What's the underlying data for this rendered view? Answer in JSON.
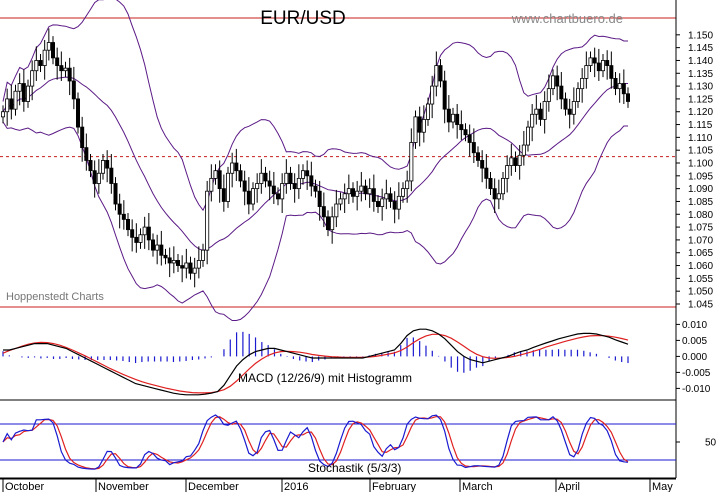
{
  "title": "EUR/USD",
  "site": "www.chartbuero.de",
  "watermark": "Hoppenstedt Charts",
  "colors": {
    "candle": "#000000",
    "bollinger": "#5b1a86",
    "redline": "#c81e1e",
    "macd_line": "#000000",
    "signal_line": "#e02020",
    "histogram": "#1a1ad0",
    "stoch_k": "#1a1ad0",
    "stoch_d": "#e02020",
    "stoch_levels": "#1a1ad0",
    "ref_dotted": "#c81e1e"
  },
  "x_labels": [
    "October",
    "November",
    "December",
    "2016",
    "February",
    "March",
    "April",
    "May"
  ],
  "chart_data": [
    {
      "type": "candlestick",
      "title": "EUR/USD",
      "ylim": [
        1.045,
        1.155
      ],
      "y_ticks": [
        "1.150",
        "1.145",
        "1.140",
        "1.135",
        "1.130",
        "1.125",
        "1.120",
        "1.115",
        "1.110",
        "1.105",
        "1.100",
        "1.095",
        "1.090",
        "1.085",
        "1.080",
        "1.075",
        "1.070",
        "1.065",
        "1.060",
        "1.055",
        "1.050",
        "1.045"
      ],
      "reference_line": 1.1025,
      "x_range": [
        0,
        144
      ],
      "close": [
        1.12,
        1.125,
        1.121,
        1.128,
        1.131,
        1.124,
        1.13,
        1.136,
        1.14,
        1.138,
        1.144,
        1.147,
        1.141,
        1.138,
        1.136,
        1.137,
        1.132,
        1.125,
        1.114,
        1.106,
        1.101,
        1.097,
        1.092,
        1.096,
        1.101,
        1.098,
        1.092,
        1.084,
        1.08,
        1.078,
        1.074,
        1.071,
        1.069,
        1.072,
        1.075,
        1.07,
        1.066,
        1.068,
        1.064,
        1.063,
        1.061,
        1.062,
        1.06,
        1.059,
        1.061,
        1.057,
        1.059,
        1.062,
        1.066,
        1.089,
        1.094,
        1.097,
        1.09,
        1.085,
        1.096,
        1.1,
        1.097,
        1.093,
        1.089,
        1.084,
        1.09,
        1.092,
        1.096,
        1.093,
        1.091,
        1.088,
        1.086,
        1.092,
        1.096,
        1.092,
        1.09,
        1.094,
        1.097,
        1.095,
        1.091,
        1.089,
        1.083,
        1.079,
        1.074,
        1.079,
        1.084,
        1.086,
        1.088,
        1.09,
        1.087,
        1.089,
        1.091,
        1.088,
        1.09,
        1.085,
        1.083,
        1.086,
        1.088,
        1.085,
        1.082,
        1.087,
        1.09,
        1.093,
        1.108,
        1.118,
        1.112,
        1.117,
        1.123,
        1.13,
        1.138,
        1.132,
        1.121,
        1.116,
        1.119,
        1.115,
        1.113,
        1.111,
        1.108,
        1.104,
        1.101,
        1.098,
        1.094,
        1.09,
        1.086,
        1.088,
        1.094,
        1.099,
        1.102,
        1.099,
        1.103,
        1.107,
        1.114,
        1.119,
        1.121,
        1.117,
        1.124,
        1.129,
        1.134,
        1.13,
        1.125,
        1.121,
        1.119,
        1.124,
        1.129,
        1.133,
        1.138,
        1.141,
        1.139,
        1.136,
        1.14,
        1.138,
        1.133,
        1.129,
        1.131,
        1.127,
        1.124
      ],
      "series": [
        {
          "name": "MACD (12/26/9) mit Histogramm",
          "role": "panel_label"
        }
      ]
    },
    {
      "type": "line",
      "title": "MACD (12/26/9) mit Histogramm",
      "ylim": [
        -0.013,
        0.012
      ],
      "y_ticks": [
        "0.010",
        "0.005",
        "0.000",
        "-0.005",
        "-0.010"
      ],
      "macd": [
        0.002,
        0.002,
        0.0025,
        0.003,
        0.0035,
        0.004,
        0.004,
        0.004,
        0.0035,
        0.003,
        0.0025,
        0.0015,
        0.0005,
        -0.0005,
        -0.0015,
        -0.0025,
        -0.0035,
        -0.0045,
        -0.0055,
        -0.0065,
        -0.0075,
        -0.0085,
        -0.009,
        -0.0095,
        -0.01,
        -0.0105,
        -0.011,
        -0.0115,
        -0.0118,
        -0.012,
        -0.012,
        -0.012,
        -0.0118,
        -0.0115,
        -0.011,
        -0.009,
        -0.006,
        -0.003,
        -0.001,
        0.0005,
        0.0015,
        0.002,
        0.0025,
        0.0025,
        0.002,
        0.0015,
        0.001,
        0.0005,
        0.0,
        -0.0005,
        -0.0005,
        -0.0005,
        -0.0005,
        -0.0005,
        -0.0005,
        -0.0005,
        -0.0005,
        -0.0005,
        0.0,
        0.0005,
        0.001,
        0.0015,
        0.002,
        0.004,
        0.0065,
        0.008,
        0.0085,
        0.0085,
        0.008,
        0.007,
        0.0055,
        0.0035,
        0.0015,
        0.0,
        -0.001,
        -0.0015,
        -0.002,
        -0.0015,
        -0.001,
        -0.0005,
        0.0,
        0.0008,
        0.0015,
        0.002,
        0.0028,
        0.0035,
        0.0042,
        0.0048,
        0.0055,
        0.006,
        0.0065,
        0.007,
        0.0072,
        0.0072,
        0.007,
        0.0065,
        0.006,
        0.0052,
        0.0045,
        0.0038
      ],
      "signal": [
        0.001,
        0.0018,
        0.0025,
        0.0032,
        0.0038,
        0.0042,
        0.0044,
        0.0043,
        0.004,
        0.0035,
        0.0028,
        0.002,
        0.0011,
        0.0002,
        -0.0008,
        -0.0018,
        -0.0028,
        -0.0038,
        -0.0047,
        -0.0056,
        -0.0064,
        -0.0072,
        -0.0079,
        -0.0085,
        -0.009,
        -0.0095,
        -0.01,
        -0.0104,
        -0.0108,
        -0.0111,
        -0.0113,
        -0.0114,
        -0.0114,
        -0.0113,
        -0.011,
        -0.0104,
        -0.0093,
        -0.0077,
        -0.0058,
        -0.0039,
        -0.0022,
        -0.0008,
        0.0003,
        0.0011,
        0.0015,
        0.0016,
        0.0015,
        0.0013,
        0.001,
        0.0006,
        0.0003,
        0.0001,
        -0.0001,
        -0.0002,
        -0.0003,
        -0.0003,
        -0.0003,
        -0.0003,
        -0.0002,
        0.0,
        0.0003,
        0.0007,
        0.0011,
        0.0018,
        0.0029,
        0.0043,
        0.0055,
        0.0064,
        0.0069,
        0.0069,
        0.0065,
        0.0057,
        0.0045,
        0.0032,
        0.0018,
        0.0007,
        -0.0001,
        -0.0005,
        -0.0006,
        -0.0005,
        -0.0003,
        0.0,
        0.0005,
        0.001,
        0.0016,
        0.0022,
        0.0029,
        0.0035,
        0.0041,
        0.0047,
        0.0052,
        0.0057,
        0.0061,
        0.0064,
        0.0065,
        0.0065,
        0.0063,
        0.006,
        0.0056,
        0.0051
      ]
    },
    {
      "type": "line",
      "title": "Stochastik (5/3/3)",
      "ylim": [
        0,
        100
      ],
      "y_ticks": [
        "50"
      ],
      "levels": [
        80,
        20
      ]
    }
  ]
}
